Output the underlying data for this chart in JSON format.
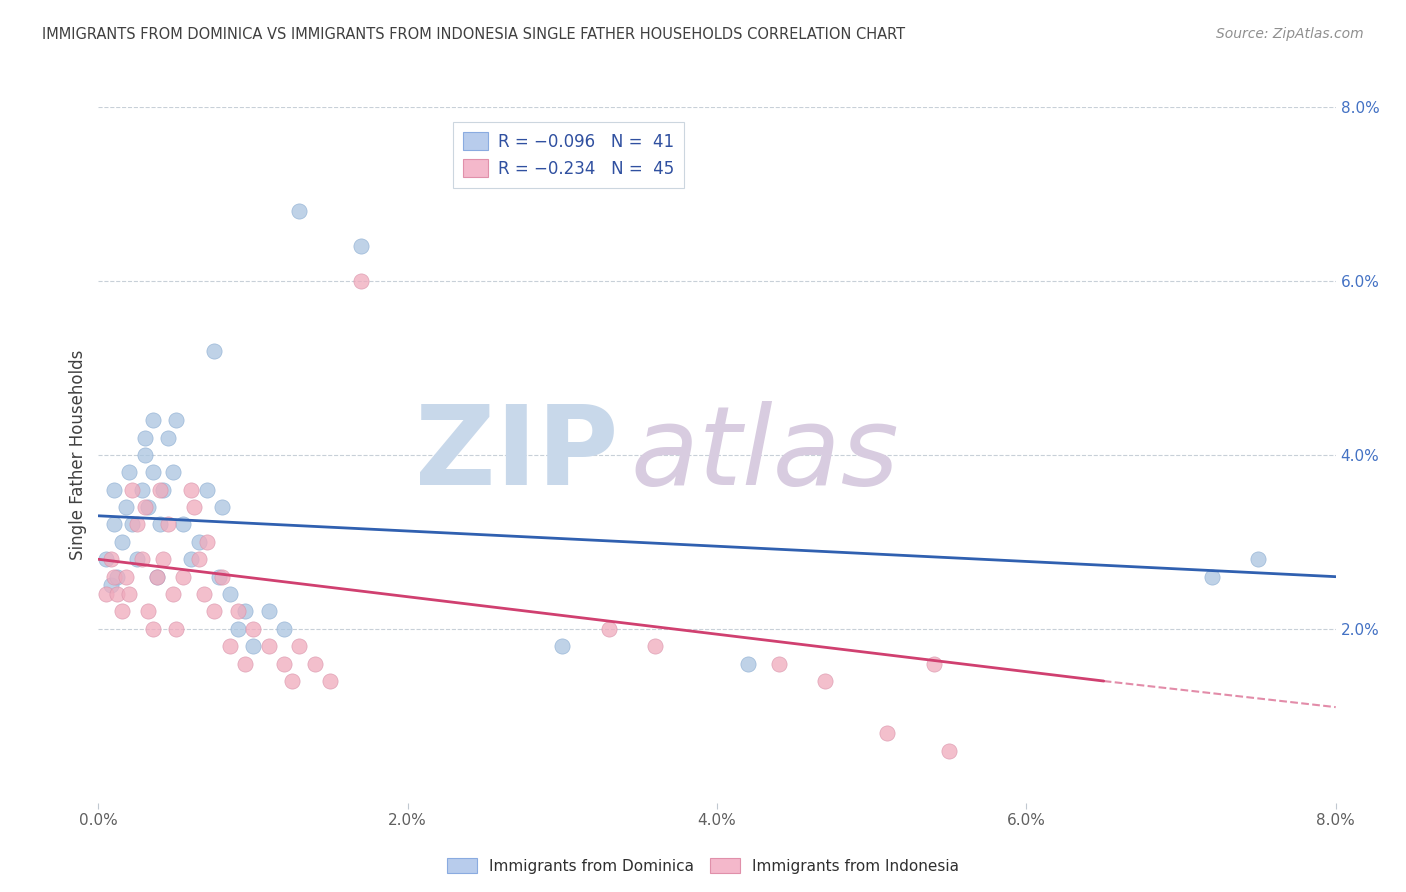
{
  "title": "IMMIGRANTS FROM DOMINICA VS IMMIGRANTS FROM INDONESIA SINGLE FATHER HOUSEHOLDS CORRELATION CHART",
  "source": "Source: ZipAtlas.com",
  "ylabel": "Single Father Households",
  "legend_blue_r": "R = -0.096",
  "legend_blue_n": "N =  41",
  "legend_pink_r": "R = -0.234",
  "legend_pink_n": "N =  45",
  "legend_label_blue": "Immigrants from Dominica",
  "legend_label_pink": "Immigrants from Indonesia",
  "xlim": [
    0.0,
    8.0
  ],
  "ylim": [
    0.0,
    8.0
  ],
  "yticks": [
    2.0,
    4.0,
    6.0,
    8.0
  ],
  "xticks": [
    0.0,
    2.0,
    4.0,
    6.0,
    8.0
  ],
  "blue_scatter": [
    [
      0.05,
      2.8
    ],
    [
      0.08,
      2.5
    ],
    [
      0.1,
      3.6
    ],
    [
      0.1,
      3.2
    ],
    [
      0.12,
      2.6
    ],
    [
      0.15,
      3.0
    ],
    [
      0.18,
      3.4
    ],
    [
      0.2,
      3.8
    ],
    [
      0.22,
      3.2
    ],
    [
      0.25,
      2.8
    ],
    [
      0.28,
      3.6
    ],
    [
      0.3,
      4.2
    ],
    [
      0.3,
      4.0
    ],
    [
      0.32,
      3.4
    ],
    [
      0.35,
      4.4
    ],
    [
      0.35,
      3.8
    ],
    [
      0.38,
      2.6
    ],
    [
      0.4,
      3.2
    ],
    [
      0.42,
      3.6
    ],
    [
      0.45,
      4.2
    ],
    [
      0.48,
      3.8
    ],
    [
      0.5,
      4.4
    ],
    [
      0.55,
      3.2
    ],
    [
      0.6,
      2.8
    ],
    [
      0.65,
      3.0
    ],
    [
      0.7,
      3.6
    ],
    [
      0.75,
      5.2
    ],
    [
      0.78,
      2.6
    ],
    [
      0.8,
      3.4
    ],
    [
      0.85,
      2.4
    ],
    [
      0.9,
      2.0
    ],
    [
      0.95,
      2.2
    ],
    [
      1.0,
      1.8
    ],
    [
      1.1,
      2.2
    ],
    [
      1.2,
      2.0
    ],
    [
      1.3,
      6.8
    ],
    [
      1.7,
      6.4
    ],
    [
      3.0,
      1.8
    ],
    [
      4.2,
      1.6
    ],
    [
      7.2,
      2.6
    ],
    [
      7.5,
      2.8
    ]
  ],
  "pink_scatter": [
    [
      0.05,
      2.4
    ],
    [
      0.08,
      2.8
    ],
    [
      0.1,
      2.6
    ],
    [
      0.12,
      2.4
    ],
    [
      0.15,
      2.2
    ],
    [
      0.18,
      2.6
    ],
    [
      0.2,
      2.4
    ],
    [
      0.22,
      3.6
    ],
    [
      0.25,
      3.2
    ],
    [
      0.28,
      2.8
    ],
    [
      0.3,
      3.4
    ],
    [
      0.32,
      2.2
    ],
    [
      0.35,
      2.0
    ],
    [
      0.38,
      2.6
    ],
    [
      0.4,
      3.6
    ],
    [
      0.42,
      2.8
    ],
    [
      0.45,
      3.2
    ],
    [
      0.48,
      2.4
    ],
    [
      0.5,
      2.0
    ],
    [
      0.55,
      2.6
    ],
    [
      0.6,
      3.6
    ],
    [
      0.62,
      3.4
    ],
    [
      0.65,
      2.8
    ],
    [
      0.68,
      2.4
    ],
    [
      0.7,
      3.0
    ],
    [
      0.75,
      2.2
    ],
    [
      0.8,
      2.6
    ],
    [
      0.85,
      1.8
    ],
    [
      0.9,
      2.2
    ],
    [
      0.95,
      1.6
    ],
    [
      1.0,
      2.0
    ],
    [
      1.1,
      1.8
    ],
    [
      1.2,
      1.6
    ],
    [
      1.25,
      1.4
    ],
    [
      1.3,
      1.8
    ],
    [
      1.4,
      1.6
    ],
    [
      1.5,
      1.4
    ],
    [
      1.7,
      6.0
    ],
    [
      3.3,
      2.0
    ],
    [
      3.6,
      1.8
    ],
    [
      4.4,
      1.6
    ],
    [
      4.7,
      1.4
    ],
    [
      5.1,
      0.8
    ],
    [
      5.4,
      1.6
    ],
    [
      5.5,
      0.6
    ]
  ],
  "blue_line_start_x": 0.0,
  "blue_line_start_y": 3.3,
  "blue_line_end_x": 8.0,
  "blue_line_end_y": 2.6,
  "pink_line_start_x": 0.0,
  "pink_line_start_y": 2.8,
  "pink_line_end_x": 6.5,
  "pink_line_end_y": 1.4,
  "pink_dash_start_x": 6.5,
  "pink_dash_start_y": 1.4,
  "pink_dash_end_x": 8.0,
  "pink_dash_end_y": 1.1,
  "blue_color": "#aac4e0",
  "pink_color": "#f0aabc",
  "blue_line_color": "#3060b0",
  "pink_line_color": "#d04070",
  "bg_color": "#ffffff",
  "grid_color": "#c8d0d8",
  "title_color": "#404040",
  "source_color": "#909090"
}
